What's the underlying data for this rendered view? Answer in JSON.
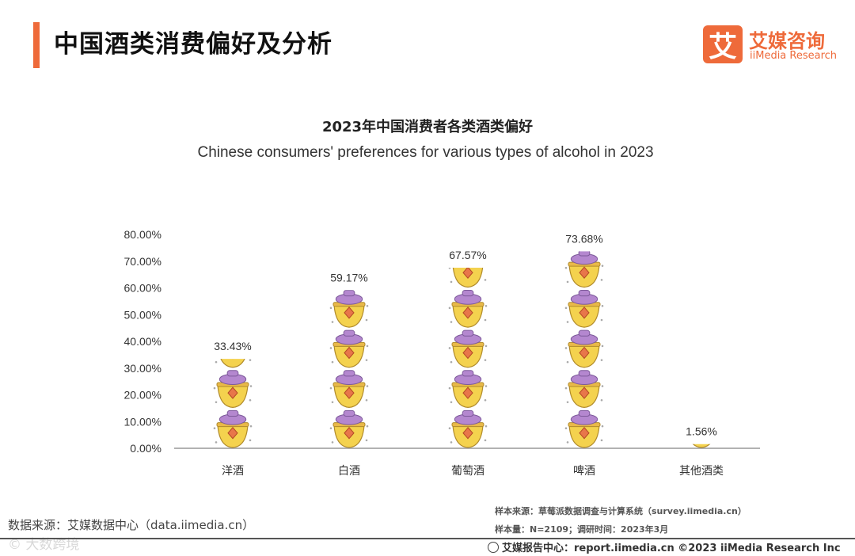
{
  "page": {
    "title": "中国酒类消费偏好及分析",
    "logo_mark": "艾",
    "logo_cn": "艾媒咨询",
    "logo_en": "iiMedia Research"
  },
  "chart_data": {
    "type": "bar",
    "title": "2023年中国消费者各类酒类偏好",
    "subtitle": "Chinese consumers' preferences for various types of alcohol in 2023",
    "categories": [
      "洋酒",
      "白酒",
      "葡萄酒",
      "啤酒",
      "其他酒类"
    ],
    "values": [
      33.43,
      59.17,
      67.57,
      73.68,
      1.56
    ],
    "value_labels": [
      "33.43%",
      "59.17%",
      "67.57%",
      "73.68%",
      "1.56%"
    ],
    "y_ticks": [
      0,
      10,
      20,
      30,
      40,
      50,
      60,
      70,
      80
    ],
    "y_tick_labels": [
      "0.00%",
      "10.00%",
      "20.00%",
      "30.00%",
      "40.00%",
      "50.00%",
      "60.00%",
      "70.00%",
      "80.00%"
    ],
    "ylim": [
      0,
      80
    ],
    "xlabel": "",
    "ylabel": "",
    "grid": false,
    "colors": {
      "ingot": "#f4d24e",
      "ingot_edge": "#b08a2a",
      "lid": "#b487cf",
      "gem": "#e8764a",
      "axis": "#999999"
    }
  },
  "footer": {
    "source_left": "数据来源：艾媒数据中心（data.iimedia.cn）",
    "watermark": "© 大数跨境",
    "sample_source": "样本来源：草莓派数据调查与计算系统（survey.iimedia.cn）",
    "sample_size": "样本量：N=2109；调研时间：2023年3月",
    "report_center": "艾媒报告中心：report.iimedia.cn  ©2023  iiMedia Research  Inc"
  }
}
